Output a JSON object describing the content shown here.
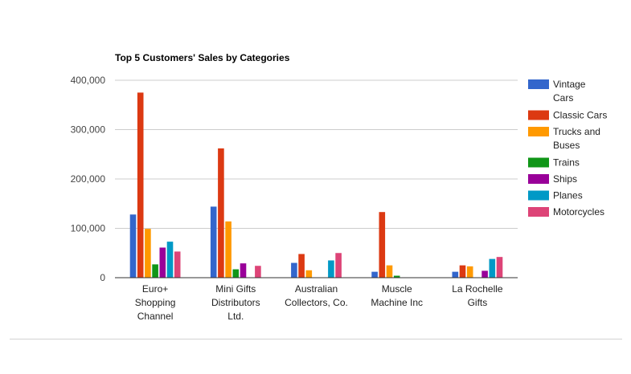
{
  "chart_data": {
    "type": "bar",
    "title": "Top 5 Customers' Sales by Categories",
    "categories": [
      [
        "Euro+",
        "Shopping",
        "Channel"
      ],
      [
        "Mini Gifts",
        "Distributors",
        "Ltd."
      ],
      [
        "Australian",
        "Collectors, Co."
      ],
      [
        "Muscle",
        "Machine Inc"
      ],
      [
        "La Rochelle",
        "Gifts"
      ]
    ],
    "ylim": [
      0,
      400000
    ],
    "yticks": [
      0,
      100000,
      200000,
      300000,
      400000
    ],
    "ytick_labels": [
      "0",
      "100,000",
      "200,000",
      "300,000",
      "400,000"
    ],
    "grid": true,
    "legend_position": "right",
    "series": [
      {
        "name": "Vintage Cars",
        "legend_lines": [
          "Vintage",
          "Cars"
        ],
        "color": "#3366cc",
        "values": [
          128000,
          144000,
          30000,
          12000,
          12000
        ]
      },
      {
        "name": "Classic Cars",
        "legend_lines": [
          "Classic Cars"
        ],
        "color": "#dc3912",
        "values": [
          375000,
          262000,
          48000,
          133000,
          25000
        ]
      },
      {
        "name": "Trucks and Buses",
        "legend_lines": [
          "Trucks and",
          "Buses"
        ],
        "color": "#ff9900",
        "values": [
          99000,
          114000,
          15000,
          25000,
          23000
        ]
      },
      {
        "name": "Trains",
        "legend_lines": [
          "Trains"
        ],
        "color": "#109618",
        "values": [
          27000,
          17000,
          0,
          4000,
          0
        ]
      },
      {
        "name": "Ships",
        "legend_lines": [
          "Ships"
        ],
        "color": "#990099",
        "values": [
          61000,
          29000,
          0,
          0,
          14000
        ]
      },
      {
        "name": "Planes",
        "legend_lines": [
          "Planes"
        ],
        "color": "#0099c6",
        "values": [
          73000,
          0,
          35000,
          0,
          38000
        ]
      },
      {
        "name": "Motorcycles",
        "legend_lines": [
          "Motorcycles"
        ],
        "color": "#dd4477",
        "values": [
          53000,
          24000,
          50000,
          0,
          42000
        ]
      }
    ]
  }
}
